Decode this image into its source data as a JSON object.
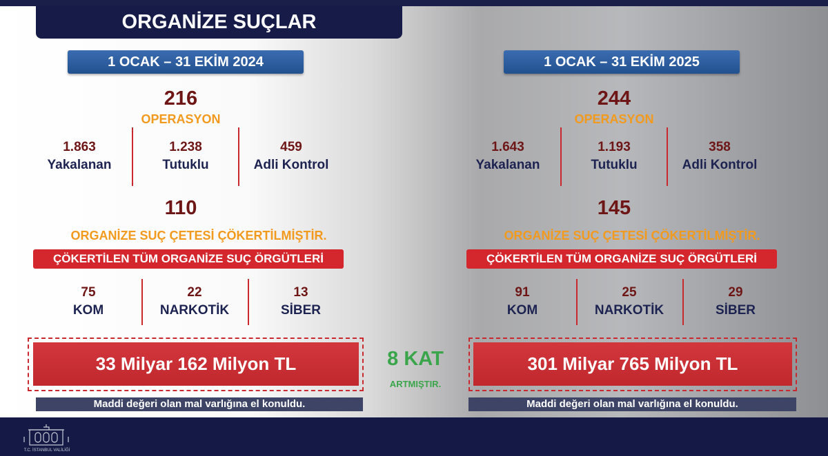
{
  "title": "ORGANİZE SUÇLAR",
  "colors": {
    "navy": "#141a45",
    "date_badge": "#2b5a9e",
    "number": "#6e1616",
    "orange": "#f29a1e",
    "red": "#d3262d",
    "green": "#3aa54a"
  },
  "left": {
    "period": "1 OCAK – 31 EKİM 2024",
    "operations": "216",
    "operations_label": "OPERASYON",
    "stats": [
      {
        "value": "1.863",
        "label": "Yakalanan"
      },
      {
        "value": "1.238",
        "label": "Tutuklu"
      },
      {
        "value": "459",
        "label": "Adli Kontrol"
      }
    ],
    "gangs": "110",
    "gangs_label": "ORGANİZE SUÇ ÇETESİ ÇÖKERTİLMİŞTİR.",
    "banner": "ÇÖKERTİLEN TÜM ORGANİZE SUÇ ÖRGÜTLERİ",
    "orgs": [
      {
        "value": "75",
        "label": "KOM"
      },
      {
        "value": "22",
        "label": "NARKOTİK"
      },
      {
        "value": "13",
        "label": "SİBER"
      }
    ],
    "money": "33 Milyar 162 Milyon TL",
    "caption": "Maddi değeri olan mal varlığına el konuldu."
  },
  "right": {
    "period": "1 OCAK – 31 EKİM 2025",
    "operations": "244",
    "operations_label": "OPERASYON",
    "stats": [
      {
        "value": "1.643",
        "label": "Yakalanan"
      },
      {
        "value": "1.193",
        "label": "Tutuklu"
      },
      {
        "value": "358",
        "label": "Adli Kontrol"
      }
    ],
    "gangs": "145",
    "gangs_label": "ORGANİZE SUÇ ÇETESİ ÇÖKERTİLMİŞTİR.",
    "banner": "ÇÖKERTİLEN TÜM ORGANİZE SUÇ ÖRGÜTLERİ",
    "orgs": [
      {
        "value": "91",
        "label": "KOM"
      },
      {
        "value": "25",
        "label": "NARKOTİK"
      },
      {
        "value": "29",
        "label": "SİBER"
      }
    ],
    "money": "301 Milyar 765 Milyon TL",
    "caption": "Maddi değeri olan mal varlığına el konuldu."
  },
  "comparison": {
    "value": "8 KAT",
    "label": "ARTMIŞTIR."
  },
  "footer": {
    "logo_text": "T.C. İSTANBUL VALİLİĞİ",
    "logo_icon": "building-icon"
  }
}
